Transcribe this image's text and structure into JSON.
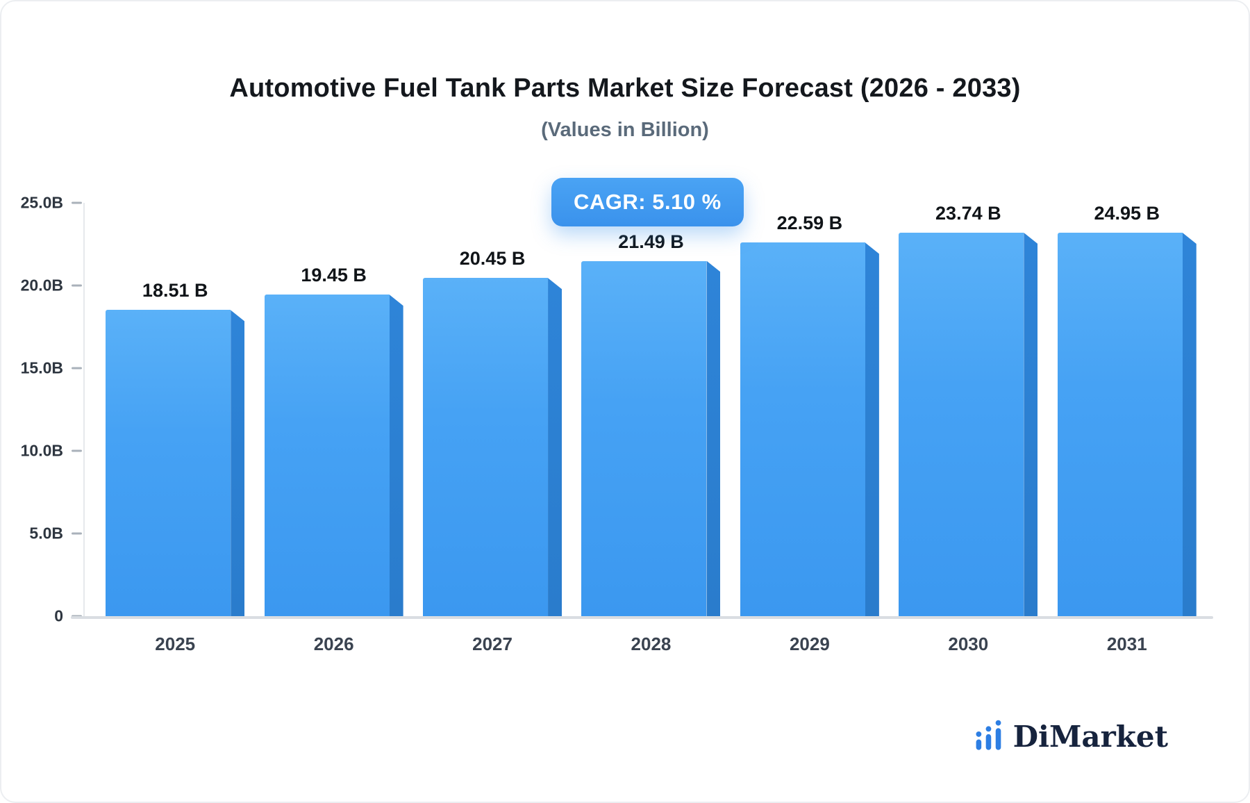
{
  "header": {
    "title": "Automotive Fuel Tank Parts Market Size Forecast (2026 - 2033)",
    "subtitle": "(Values in Billion)"
  },
  "cagr_badge": "CAGR: 5.10 %",
  "brand": {
    "name": "DiMarket",
    "icon": "bar-chart-dots-icon",
    "color": "#2d7ee3"
  },
  "colors": {
    "bar_top": "#5ab1f8",
    "bar_bottom": "#3b98f0",
    "bar_side": "#2b7ecf",
    "badge": "#3f98ef",
    "axis": "#d9dde2"
  },
  "chart_data": {
    "type": "bar",
    "title": "Automotive Fuel Tank Parts Market Size Forecast (2026 - 2033)",
    "subtitle": "(Values in Billion)",
    "categories": [
      "2025",
      "2026",
      "2027",
      "2028",
      "2029",
      "2030",
      "2031"
    ],
    "values": [
      18.51,
      19.45,
      20.45,
      21.49,
      22.59,
      23.74,
      24.95
    ],
    "value_labels": [
      "18.51 B",
      "19.45 B",
      "20.45 B",
      "21.49 B",
      "22.59 B",
      "23.74 B",
      "24.95 B"
    ],
    "xlabel": "",
    "ylabel": "",
    "ylim": [
      0,
      25
    ],
    "yticks": [
      {
        "value": 0,
        "label": "0"
      },
      {
        "value": 5,
        "label": "5.0B"
      },
      {
        "value": 10,
        "label": "10.0B"
      },
      {
        "value": 15,
        "label": "15.0B"
      },
      {
        "value": 20,
        "label": "20.0B"
      },
      {
        "value": 25,
        "label": "25.0B"
      }
    ],
    "grid": false,
    "legend": false,
    "annotation": "CAGR: 5.10 %"
  }
}
